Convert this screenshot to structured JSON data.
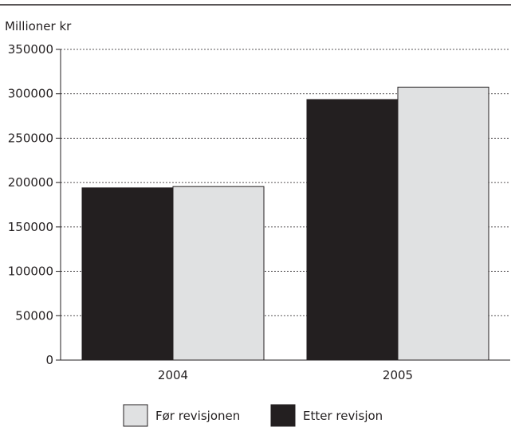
{
  "chart_data": {
    "type": "bar",
    "ylabel": "Millioner kr",
    "categories": [
      "2004",
      "2005"
    ],
    "series": [
      {
        "name": "Etter revisjon",
        "values": [
          194000,
          293500
        ],
        "color": "#231f20"
      },
      {
        "name": "Før revisjonen",
        "values": [
          195500,
          307500
        ],
        "color": "#e0e1e2"
      }
    ],
    "ylim": [
      0,
      350000
    ],
    "yticks": [
      "0",
      "50000",
      "100000",
      "150000",
      "200000",
      "250000",
      "300000",
      "350000"
    ],
    "grid": true,
    "legend": {
      "placement": "bottom",
      "items": [
        {
          "label": "Før revisjonen",
          "color": "#e0e1e2"
        },
        {
          "label": "Etter revisjon",
          "color": "#231f20"
        }
      ]
    }
  }
}
